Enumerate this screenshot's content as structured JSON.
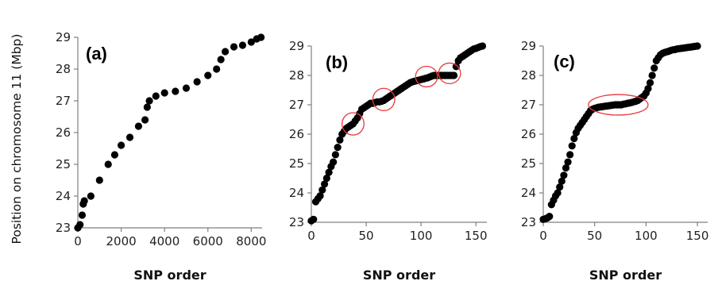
{
  "figure": {
    "ylabel": "Position on chromosome 11 (Mbp)"
  },
  "chart_data": [
    {
      "panel_label": "(a)",
      "type": "scatter",
      "xlabel": "SNP order",
      "ylabel": "Position on chromosome 11 (Mbp)",
      "xlim": [
        0,
        8500
      ],
      "ylim": [
        23,
        29
      ],
      "xticks": [
        0,
        2000,
        4000,
        6000,
        8000
      ],
      "yticks": [
        23,
        24,
        25,
        26,
        27,
        28,
        29
      ],
      "marker_color": "#000000",
      "x": [
        0,
        100,
        200,
        250,
        300,
        600,
        1000,
        1400,
        1700,
        2000,
        2400,
        2800,
        3100,
        3200,
        3300,
        3600,
        4000,
        4500,
        5000,
        5500,
        6000,
        6400,
        6600,
        6800,
        7200,
        7600,
        8000,
        8250,
        8450
      ],
      "y": [
        23.0,
        23.1,
        23.4,
        23.75,
        23.85,
        24.0,
        24.5,
        25.0,
        25.3,
        25.6,
        25.85,
        26.2,
        26.4,
        26.8,
        27.0,
        27.15,
        27.25,
        27.3,
        27.4,
        27.6,
        27.8,
        28.0,
        28.3,
        28.55,
        28.7,
        28.75,
        28.85,
        28.95,
        29.0
      ],
      "circles": []
    },
    {
      "panel_label": "(b)",
      "type": "scatter",
      "xlabel": "SNP order",
      "ylabel": "",
      "xlim": [
        0,
        160
      ],
      "ylim": [
        23,
        29
      ],
      "xticks": [
        0,
        50,
        100,
        150
      ],
      "yticks": [
        23,
        24,
        25,
        26,
        27,
        28,
        29
      ],
      "marker_color": "#000000",
      "x": [
        0,
        2,
        4,
        6,
        8,
        10,
        12,
        14,
        16,
        18,
        20,
        22,
        24,
        26,
        28,
        30,
        32,
        34,
        36,
        38,
        40,
        42,
        44,
        46,
        48,
        50,
        52,
        54,
        56,
        58,
        60,
        62,
        64,
        66,
        68,
        70,
        72,
        74,
        76,
        78,
        80,
        82,
        84,
        86,
        88,
        90,
        92,
        94,
        96,
        98,
        100,
        102,
        104,
        106,
        108,
        110,
        112,
        114,
        116,
        118,
        120,
        122,
        124,
        126,
        128,
        130,
        132,
        134,
        136,
        138,
        140,
        142,
        144,
        146,
        148,
        150,
        152,
        154,
        156
      ],
      "y": [
        23.05,
        23.1,
        23.7,
        23.8,
        23.9,
        24.1,
        24.3,
        24.5,
        24.7,
        24.9,
        25.05,
        25.3,
        25.55,
        25.8,
        26.0,
        26.1,
        26.2,
        26.25,
        26.3,
        26.35,
        26.45,
        26.55,
        26.7,
        26.85,
        26.9,
        26.95,
        27.0,
        27.05,
        27.05,
        27.08,
        27.1,
        27.1,
        27.12,
        27.15,
        27.2,
        27.25,
        27.3,
        27.35,
        27.4,
        27.45,
        27.5,
        27.55,
        27.6,
        27.65,
        27.7,
        27.75,
        27.78,
        27.8,
        27.82,
        27.84,
        27.86,
        27.88,
        27.9,
        27.92,
        27.95,
        27.98,
        28.0,
        28.0,
        28.0,
        28.0,
        28.0,
        28.0,
        28.0,
        28.0,
        28.0,
        28.0,
        28.3,
        28.5,
        28.6,
        28.65,
        28.7,
        28.75,
        28.8,
        28.85,
        28.9,
        28.92,
        28.95,
        28.98,
        29.0
      ],
      "circles": [
        {
          "x": 38,
          "y": 26.35,
          "rx": 10,
          "ry": 0.38
        },
        {
          "x": 66,
          "y": 27.18,
          "rx": 10,
          "ry": 0.38
        },
        {
          "x": 105,
          "y": 27.96,
          "rx": 10,
          "ry": 0.35
        },
        {
          "x": 126,
          "y": 28.07,
          "rx": 10,
          "ry": 0.35
        }
      ]
    },
    {
      "panel_label": "(c)",
      "type": "scatter",
      "xlabel": "SNP order",
      "ylabel": "",
      "xlim": [
        0,
        160
      ],
      "ylim": [
        23,
        29
      ],
      "xticks": [
        0,
        50,
        100,
        150
      ],
      "yticks": [
        23,
        24,
        25,
        26,
        27,
        28,
        29
      ],
      "marker_color": "#000000",
      "x": [
        0,
        2,
        4,
        6,
        8,
        10,
        12,
        14,
        16,
        18,
        20,
        22,
        24,
        26,
        28,
        30,
        32,
        34,
        36,
        38,
        40,
        42,
        44,
        46,
        48,
        50,
        52,
        54,
        56,
        58,
        60,
        62,
        64,
        66,
        68,
        70,
        72,
        74,
        76,
        78,
        80,
        82,
        84,
        86,
        88,
        90,
        92,
        94,
        96,
        98,
        100,
        102,
        104,
        106,
        108,
        110,
        112,
        114,
        116,
        118,
        120,
        122,
        124,
        126,
        128,
        130,
        132,
        134,
        136,
        138,
        140,
        142,
        144,
        146,
        148,
        150
      ],
      "y": [
        23.1,
        23.12,
        23.15,
        23.2,
        23.6,
        23.75,
        23.9,
        24.0,
        24.2,
        24.4,
        24.6,
        24.85,
        25.05,
        25.3,
        25.6,
        25.85,
        26.05,
        26.2,
        26.3,
        26.4,
        26.5,
        26.6,
        26.7,
        26.8,
        26.85,
        26.88,
        26.9,
        26.92,
        26.93,
        26.94,
        26.95,
        26.96,
        26.97,
        26.98,
        26.99,
        27.0,
        27.0,
        27.0,
        27.0,
        27.02,
        27.03,
        27.05,
        27.06,
        27.08,
        27.1,
        27.12,
        27.15,
        27.2,
        27.25,
        27.3,
        27.4,
        27.55,
        27.75,
        28.0,
        28.25,
        28.5,
        28.6,
        28.7,
        28.75,
        28.78,
        28.8,
        28.82,
        28.85,
        28.87,
        28.88,
        28.9,
        28.91,
        28.92,
        28.93,
        28.94,
        28.95,
        28.96,
        28.97,
        28.98,
        28.99,
        29.0
      ],
      "circles": [
        {
          "x": 73,
          "y": 27.0,
          "rx": 29,
          "ry": 0.35
        }
      ]
    }
  ]
}
